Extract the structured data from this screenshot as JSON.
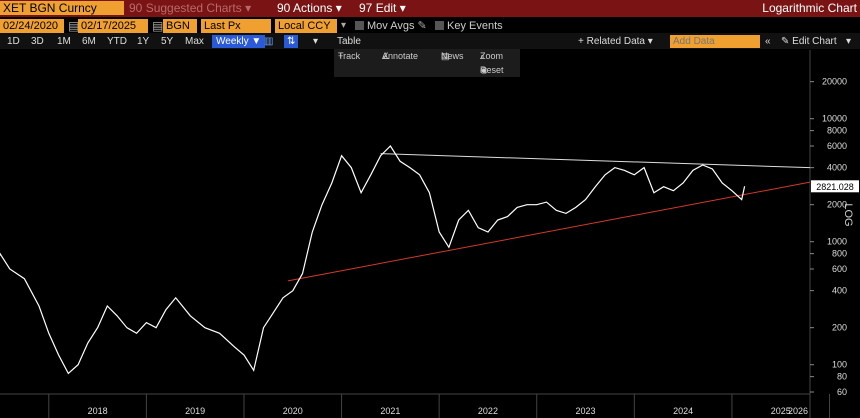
{
  "header": {
    "security": "XET BGN Curncy",
    "suggested_charts": "Suggested Charts",
    "actions": "Actions",
    "edit": "Edit",
    "chart_type": "Logarithmic Chart",
    "num_90a": "90",
    "num_90b": "90",
    "num_97": "97"
  },
  "params": {
    "start_date": "02/24/2020",
    "end_date": "02/17/2025",
    "source": "BGN",
    "field": "Last Px",
    "currency": "Local CCY",
    "mov_avgs": "Mov Avgs",
    "key_events": "Key Events"
  },
  "toolbar": {
    "periods": [
      "1D",
      "3D",
      "1M",
      "6M",
      "YTD",
      "1Y",
      "5Y",
      "Max"
    ],
    "frequency": "Weekly",
    "table": "Table",
    "related_data": "+ Related Data",
    "add_data_placeholder": "Add Data",
    "edit_chart": "Edit Chart"
  },
  "mini_toolbar": {
    "track": "Track",
    "annotate": "Annotate",
    "news": "News",
    "zoom": "Zoom",
    "reset": "Reset"
  },
  "colors": {
    "price_line": "#ffffff",
    "upper_trend": "#dddddd",
    "lower_trend": "#d23a2a",
    "header_bg": "#7a1414",
    "field_bg": "#f0a030"
  },
  "chart_data": {
    "type": "line",
    "scale": "log",
    "ylabel": "LOG",
    "ylim": [
      60,
      30000
    ],
    "xlim": [
      2017.5,
      2025.8
    ],
    "last_value": "2821.028",
    "y_ticks": [
      60,
      80,
      100,
      200,
      400,
      600,
      800,
      1000,
      2000,
      4000,
      6000,
      8000,
      10000,
      20000
    ],
    "x_ticks": [
      "2018",
      "2019",
      "2020",
      "2021",
      "2022",
      "2023",
      "2024",
      "2025",
      "2026"
    ],
    "series": [
      {
        "x": [
          2017.3,
          2017.35,
          2017.42,
          2017.5,
          2017.6,
          2017.75,
          2017.9,
          2018.0,
          2018.1,
          2018.2,
          2018.3,
          2018.4,
          2018.5,
          2018.6,
          2018.7,
          2018.8,
          2018.9,
          2019.0,
          2019.1,
          2019.2,
          2019.3,
          2019.45,
          2019.6,
          2019.75,
          2019.9,
          2020.0,
          2020.1,
          2020.2,
          2020.28,
          2020.4,
          2020.5,
          2020.6,
          2020.7,
          2020.8,
          2020.9,
          2021.0,
          2021.1,
          2021.2,
          2021.3,
          2021.4,
          2021.5,
          2021.6,
          2021.7,
          2021.8,
          2021.9,
          2022.0,
          2022.1,
          2022.2,
          2022.3,
          2022.4,
          2022.5,
          2022.6,
          2022.7,
          2022.8,
          2022.9,
          2023.0,
          2023.1,
          2023.2,
          2023.3,
          2023.4,
          2023.5,
          2023.6,
          2023.7,
          2023.8,
          2023.9,
          2024.0,
          2024.1,
          2024.2,
          2024.3,
          2024.4,
          2024.5,
          2024.6,
          2024.7,
          2024.8,
          2024.9,
          2025.0,
          2025.1,
          2025.13
        ],
        "y": [
          900,
          850,
          400,
          800,
          600,
          500,
          300,
          180,
          120,
          85,
          100,
          150,
          200,
          300,
          250,
          200,
          180,
          220,
          200,
          280,
          350,
          250,
          200,
          180,
          140,
          120,
          90,
          200,
          250,
          350,
          400,
          550,
          1200,
          2000,
          3000,
          5000,
          4000,
          2500,
          3500,
          5000,
          6000,
          4500,
          4000,
          3500,
          2500,
          1200,
          900,
          1500,
          1800,
          1300,
          1200,
          1500,
          1600,
          1900,
          2000,
          2000,
          2100,
          1800,
          1700,
          1900,
          2200,
          2800,
          3500,
          4000,
          3800,
          3500,
          4000,
          2500,
          2800,
          2600,
          3000,
          3800,
          4200,
          3900,
          3000,
          2600,
          2200,
          2821
        ]
      }
    ],
    "trendlines": [
      {
        "name": "upper",
        "x": [
          2021.4,
          2025.8
        ],
        "y": [
          5200,
          4000
        ]
      },
      {
        "name": "lower",
        "x": [
          2020.45,
          2025.8
        ],
        "y": [
          480,
          3050
        ]
      }
    ]
  }
}
